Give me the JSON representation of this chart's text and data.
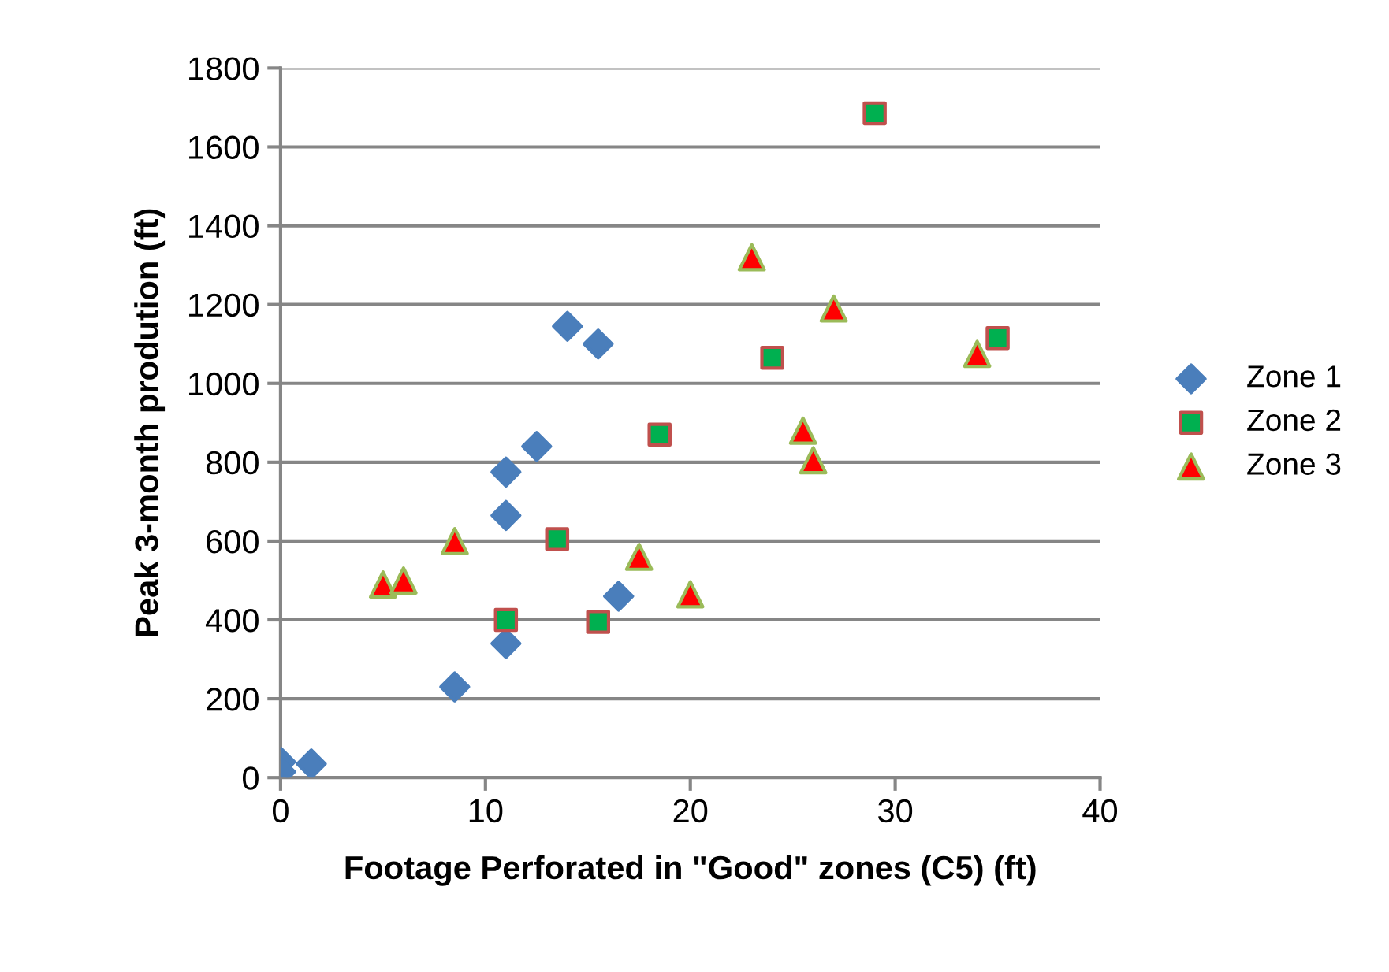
{
  "chart_data": {
    "type": "scatter",
    "xlabel": "Footage Perforated in \"Good\" zones (C5) (ft)",
    "ylabel": "Peak 3-month prodution (ft)",
    "xlim": [
      0,
      40
    ],
    "xticks": [
      0,
      10,
      20,
      30,
      40
    ],
    "ylim": [
      0,
      1800
    ],
    "yticks": [
      0,
      200,
      400,
      600,
      800,
      1000,
      1200,
      1400,
      1600,
      1800
    ],
    "grid": "y",
    "legend": "right",
    "series": [
      {
        "name": "Zone 1",
        "color": "#4a7ebb",
        "marker": "diamond",
        "x": [
          0,
          0,
          1.5,
          8.5,
          11,
          11,
          11,
          12.5,
          14,
          15.5,
          16.5
        ],
        "values": [
          40,
          15,
          35,
          230,
          340,
          665,
          775,
          840,
          1145,
          1100,
          460
        ]
      },
      {
        "name": "Zone 2",
        "color": "#00b050",
        "marker": "square",
        "x": [
          11,
          13.5,
          15.5,
          18.5,
          24,
          29,
          35
        ],
        "values": [
          400,
          605,
          395,
          870,
          1065,
          1685,
          1115
        ]
      },
      {
        "name": "Zone 3",
        "color": "#ff0000",
        "marker": "triangle",
        "x": [
          5,
          6,
          8.5,
          17.5,
          20,
          23,
          25.5,
          26,
          27,
          34
        ],
        "values": [
          490,
          500,
          600,
          560,
          465,
          1320,
          880,
          805,
          1190,
          1075
        ]
      }
    ]
  }
}
